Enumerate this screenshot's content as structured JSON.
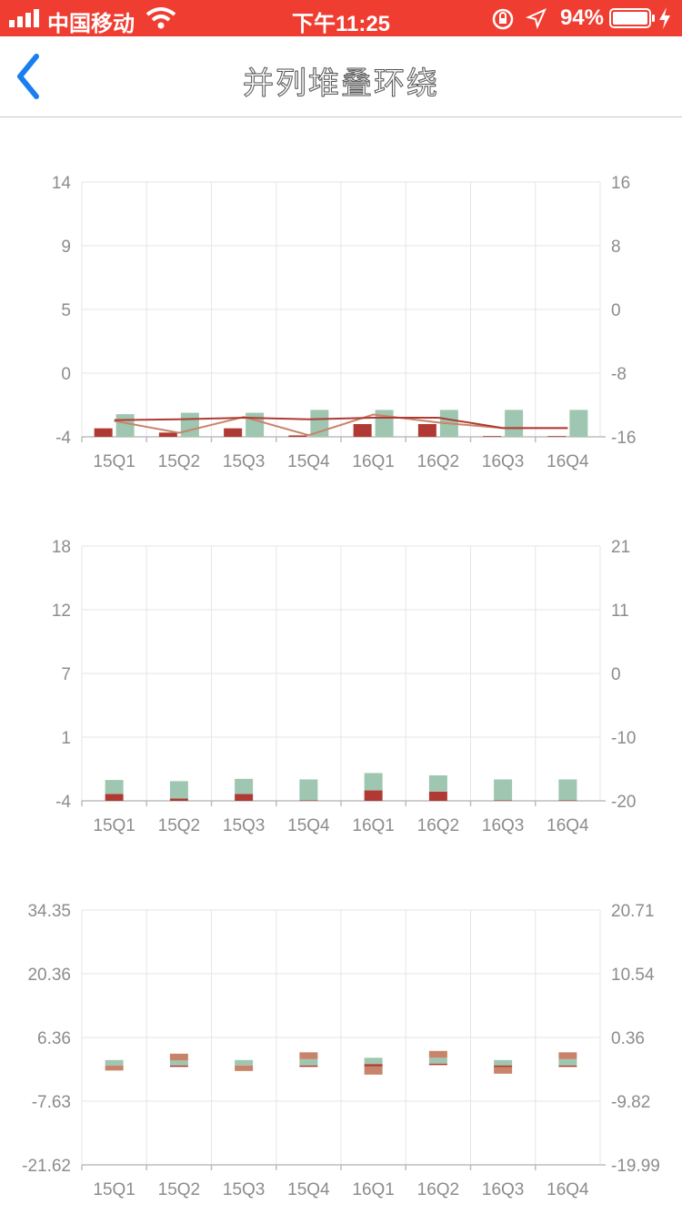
{
  "status_bar": {
    "carrier": "中国移动",
    "time": "下午11:25",
    "battery_percent": "94%",
    "background": "#f03d31"
  },
  "nav": {
    "title": "并列堆叠环绕",
    "back_icon": "chevron-left-icon",
    "accent": "#1a7ef0"
  },
  "categories": [
    "15Q1",
    "15Q2",
    "15Q3",
    "15Q4",
    "16Q1",
    "16Q2",
    "16Q3",
    "16Q4"
  ],
  "chart_data": [
    {
      "type": "bar",
      "categories": [
        "15Q1",
        "15Q2",
        "15Q3",
        "15Q4",
        "16Q1",
        "16Q2",
        "16Q3",
        "16Q4"
      ],
      "left_ticks": [
        "14",
        "9",
        "5",
        "0",
        "-4"
      ],
      "right_ticks": [
        "16",
        "8",
        "0",
        "-8",
        "-16"
      ],
      "ylim": [
        -4,
        14
      ],
      "y2lim": [
        -16,
        16
      ],
      "bar_series": [
        {
          "color": "#b03a33",
          "values": [
            -3.4,
            -3.7,
            -3.4,
            -3.9,
            -3.1,
            -3.1,
            -3.95,
            -3.95
          ]
        },
        {
          "color": "#9ec6b0",
          "values": [
            -2.4,
            -2.3,
            -2.3,
            -2.1,
            -2.1,
            -2.1,
            -2.1,
            -2.1
          ]
        }
      ],
      "line_series": [
        {
          "color": "#c8846a",
          "axis": "right",
          "values": [
            -14.0,
            -15.5,
            -13.5,
            -15.8,
            -13.2,
            -14.2,
            -14.9,
            -14.9
          ]
        },
        {
          "color": "#b03a33",
          "axis": "right",
          "values": [
            -13.9,
            -13.8,
            -13.6,
            -13.8,
            -13.6,
            -13.6,
            -14.9,
            -14.9
          ]
        }
      ],
      "grid": true
    },
    {
      "type": "bar",
      "categories": [
        "15Q1",
        "15Q2",
        "15Q3",
        "15Q4",
        "16Q1",
        "16Q2",
        "16Q3",
        "16Q4"
      ],
      "left_ticks": [
        "18",
        "12",
        "7",
        "1",
        "-4"
      ],
      "right_ticks": [
        "21",
        "11",
        "0",
        "-10",
        "-20"
      ],
      "ylim": [
        -4,
        18
      ],
      "y2lim": [
        -20,
        21
      ],
      "stacked": true,
      "bar_series": [
        {
          "color": "#b03a33",
          "values": [
            0.6,
            0.2,
            0.6,
            0.05,
            0.9,
            0.8,
            0.05,
            0.05
          ]
        },
        {
          "color": "#9ec6b0",
          "values": [
            1.2,
            1.5,
            1.3,
            1.8,
            1.5,
            1.4,
            1.8,
            1.8
          ]
        }
      ],
      "grid": true
    },
    {
      "type": "bar",
      "categories": [
        "15Q1",
        "15Q2",
        "15Q3",
        "15Q4",
        "16Q1",
        "16Q2",
        "16Q3",
        "16Q4"
      ],
      "left_ticks": [
        "34.35",
        "20.36",
        "6.36",
        "-7.63",
        "-21.62"
      ],
      "right_ticks": [
        "20.71",
        "10.54",
        "0.36",
        "-9.82",
        "-19.99"
      ],
      "ylim": [
        -21.62,
        34.35
      ],
      "y2lim": [
        -19.99,
        20.71
      ],
      "stacked": true,
      "segments": [
        [
          {
            "from": 0.2,
            "to": 1.4,
            "color": "#9ec6b0"
          },
          {
            "from": 0.2,
            "to": -0.9,
            "color": "#c8846a"
          }
        ],
        [
          {
            "from": 0.2,
            "to": 1.3,
            "color": "#9ec6b0"
          },
          {
            "from": 1.3,
            "to": 2.8,
            "color": "#c8846a"
          },
          {
            "from": 0.2,
            "to": 0.0,
            "color": "#b03a33"
          }
        ],
        [
          {
            "from": 0.2,
            "to": 1.4,
            "color": "#9ec6b0"
          },
          {
            "from": 0.2,
            "to": -1.0,
            "color": "#c8846a"
          }
        ],
        [
          {
            "from": 0.2,
            "to": 1.6,
            "color": "#9ec6b0"
          },
          {
            "from": 1.6,
            "to": 3.1,
            "color": "#c8846a"
          },
          {
            "from": 0.2,
            "to": 0.0,
            "color": "#b03a33"
          }
        ],
        [
          {
            "from": 0.5,
            "to": 1.9,
            "color": "#9ec6b0"
          },
          {
            "from": 0.0,
            "to": -1.8,
            "color": "#c8846a"
          },
          {
            "from": 0.5,
            "to": 0.0,
            "color": "#b03a33"
          }
        ],
        [
          {
            "from": 0.6,
            "to": 1.9,
            "color": "#9ec6b0"
          },
          {
            "from": 1.9,
            "to": 3.4,
            "color": "#c8846a"
          },
          {
            "from": 0.6,
            "to": 0.3,
            "color": "#b03a33"
          }
        ],
        [
          {
            "from": 0.2,
            "to": 1.4,
            "color": "#9ec6b0"
          },
          {
            "from": 0.2,
            "to": -1.6,
            "color": "#c8846a"
          },
          {
            "from": 0.2,
            "to": 0.0,
            "color": "#b03a33"
          }
        ],
        [
          {
            "from": 0.2,
            "to": 1.6,
            "color": "#9ec6b0"
          },
          {
            "from": 1.6,
            "to": 3.1,
            "color": "#c8846a"
          },
          {
            "from": 0.2,
            "to": 0.0,
            "color": "#b03a33"
          }
        ]
      ],
      "grid": true
    }
  ]
}
